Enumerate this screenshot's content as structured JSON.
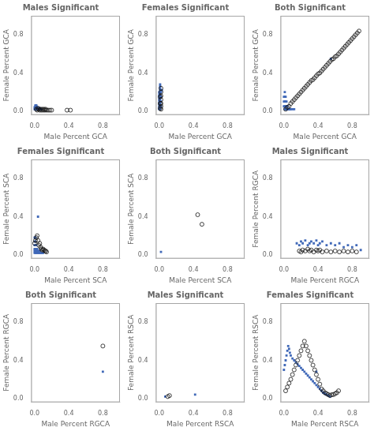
{
  "chart_data": [
    {
      "type": "scatter",
      "title": "Males Significant",
      "xlabel": "Male Percent GCA",
      "ylabel": "Female Percent GCA",
      "xlim": [
        -0.04,
        1.0
      ],
      "ylim": [
        -0.04,
        1.0
      ],
      "xticks": [
        {
          "value": 0,
          "label": "0.0"
        },
        0.4,
        0.8
      ],
      "yticks": [
        {
          "value": 0,
          "label": "0.0"
        },
        0.4,
        0.8
      ],
      "grid": false,
      "series": [
        {
          "color": "#4169b8",
          "marker": "square",
          "x": [
            0.0,
            0.0,
            0.01,
            0.01,
            0.01,
            0.01,
            0.01,
            0.02,
            0.02,
            0.02,
            0.02,
            0.02,
            0.03,
            0.03,
            0.03,
            0.04,
            0.04,
            0.05,
            0.05,
            0.06,
            0.06,
            0.07,
            0.08
          ],
          "values": [
            0.02,
            0.04,
            0.02,
            0.03,
            0.04,
            0.05,
            0.06,
            0.02,
            0.03,
            0.04,
            0.05,
            0.06,
            0.02,
            0.03,
            0.04,
            0.02,
            0.03,
            0.02,
            0.03,
            0.02,
            0.03,
            0.02,
            0.02
          ]
        },
        {
          "color": "#111111",
          "marker": "open_circle",
          "x": [
            0.02,
            0.03,
            0.04,
            0.05,
            0.06,
            0.07,
            0.08,
            0.09,
            0.1,
            0.11,
            0.12,
            0.13,
            0.14,
            0.16,
            0.18,
            0.2,
            0.38,
            0.42
          ],
          "values": [
            0.02,
            0.01,
            0.03,
            0.02,
            0.01,
            0.02,
            0.01,
            0.02,
            0.01,
            0.02,
            0.01,
            0.02,
            0.01,
            0.01,
            0.01,
            0.01,
            0.01,
            0.01
          ]
        }
      ]
    },
    {
      "type": "scatter",
      "title": "Females Significant",
      "xlabel": "Male Percent GCA",
      "ylabel": "Female Percent GCA",
      "xlim": [
        -0.04,
        1.0
      ],
      "ylim": [
        -0.04,
        1.0
      ],
      "xticks": [
        {
          "value": 0,
          "label": "0.0"
        },
        0.4,
        0.8
      ],
      "yticks": [
        {
          "value": 0,
          "label": "0.0"
        },
        0.4,
        0.8
      ],
      "grid": false,
      "series": [
        {
          "color": "#4169b8",
          "marker": "square",
          "x": [
            0.0,
            0.0,
            0.0,
            0.0,
            0.0,
            0.0,
            0.0,
            0.0,
            0.0,
            0.0,
            0.01,
            0.01,
            0.01,
            0.01,
            0.01,
            0.01,
            0.01,
            0.01,
            0.01,
            0.01,
            0.01,
            0.01,
            0.01,
            0.01,
            0.02,
            0.02,
            0.02,
            0.02,
            0.03
          ],
          "values": [
            0.02,
            0.04,
            0.06,
            0.08,
            0.1,
            0.12,
            0.14,
            0.16,
            0.18,
            0.2,
            0.02,
            0.04,
            0.06,
            0.08,
            0.1,
            0.12,
            0.14,
            0.16,
            0.18,
            0.2,
            0.22,
            0.24,
            0.26,
            0.28,
            0.05,
            0.1,
            0.15,
            0.2,
            0.22
          ]
        },
        {
          "color": "#111111",
          "marker": "open_circle",
          "x": [
            0.01,
            0.01,
            0.01,
            0.02,
            0.02,
            0.02,
            0.02,
            0.02,
            0.02,
            0.02
          ],
          "values": [
            0.03,
            0.08,
            0.15,
            0.02,
            0.05,
            0.08,
            0.12,
            0.16,
            0.2,
            0.24
          ]
        }
      ]
    },
    {
      "type": "scatter",
      "title": "Both Significant",
      "xlabel": "Male Percent GCA",
      "ylabel": "Female Percent GCA",
      "xlim": [
        -0.04,
        1.0
      ],
      "ylim": [
        -0.04,
        1.0
      ],
      "xticks": [
        {
          "value": 0,
          "label": "0.0"
        },
        0.4,
        0.8
      ],
      "yticks": [
        {
          "value": 0,
          "label": "0.0"
        },
        0.4,
        0.8
      ],
      "grid": false,
      "series": [
        {
          "color": "#4169b8",
          "marker": "square",
          "x": [
            0.0,
            0.0,
            0.0,
            0.01,
            0.01,
            0.01,
            0.01,
            0.01,
            0.02,
            0.02,
            0.02,
            0.02,
            0.03,
            0.03,
            0.03,
            0.04,
            0.04,
            0.05,
            0.06,
            0.07,
            0.08,
            0.1,
            0.12,
            0.55
          ],
          "values": [
            0.05,
            0.1,
            0.15,
            0.02,
            0.05,
            0.1,
            0.15,
            0.2,
            0.02,
            0.05,
            0.1,
            0.15,
            0.02,
            0.05,
            0.1,
            0.02,
            0.05,
            0.02,
            0.02,
            0.02,
            0.02,
            0.02,
            0.02,
            0.55
          ]
        },
        {
          "color": "#111111",
          "marker": "open_circle",
          "x": [
            0.02,
            0.04,
            0.06,
            0.08,
            0.1,
            0.12,
            0.14,
            0.16,
            0.18,
            0.2,
            0.22,
            0.24,
            0.26,
            0.28,
            0.3,
            0.32,
            0.34,
            0.36,
            0.38,
            0.4,
            0.42,
            0.44,
            0.46,
            0.48,
            0.5,
            0.52,
            0.54,
            0.56,
            0.58,
            0.6,
            0.62,
            0.64,
            0.66,
            0.68,
            0.7,
            0.72,
            0.74,
            0.76,
            0.78,
            0.8,
            0.82,
            0.84,
            0.86,
            0.88
          ],
          "values": [
            0.02,
            0.04,
            0.05,
            0.08,
            0.1,
            0.12,
            0.14,
            0.16,
            0.18,
            0.2,
            0.22,
            0.24,
            0.26,
            0.28,
            0.3,
            0.32,
            0.33,
            0.35,
            0.37,
            0.39,
            0.4,
            0.42,
            0.44,
            0.46,
            0.48,
            0.5,
            0.52,
            0.54,
            0.55,
            0.57,
            0.58,
            0.6,
            0.62,
            0.64,
            0.66,
            0.68,
            0.7,
            0.72,
            0.74,
            0.76,
            0.78,
            0.8,
            0.82,
            0.84
          ]
        }
      ]
    },
    {
      "type": "scatter",
      "title": "Females Significant",
      "xlabel": "Male Percent SCA",
      "ylabel": "Female Percent SCA",
      "xlim": [
        -0.04,
        1.0
      ],
      "ylim": [
        -0.04,
        1.0
      ],
      "xticks": [
        {
          "value": 0,
          "label": "0.0"
        },
        0.4,
        0.8
      ],
      "yticks": [
        {
          "value": 0,
          "label": "0.0"
        },
        0.4,
        0.8
      ],
      "grid": false,
      "series": [
        {
          "color": "#4169b8",
          "marker": "square",
          "x": [
            0.0,
            0.0,
            0.0,
            0.0,
            0.0,
            0.0,
            0.01,
            0.01,
            0.01,
            0.01,
            0.01,
            0.01,
            0.02,
            0.02,
            0.02,
            0.02,
            0.03,
            0.03,
            0.03,
            0.04,
            0.04,
            0.05,
            0.05,
            0.06,
            0.06,
            0.07,
            0.08,
            0.09,
            0.1,
            0.04
          ],
          "values": [
            0.02,
            0.04,
            0.06,
            0.1,
            0.14,
            0.18,
            0.02,
            0.04,
            0.06,
            0.1,
            0.14,
            0.18,
            0.02,
            0.04,
            0.06,
            0.1,
            0.02,
            0.04,
            0.06,
            0.02,
            0.04,
            0.02,
            0.04,
            0.02,
            0.04,
            0.02,
            0.02,
            0.02,
            0.02,
            0.4
          ]
        },
        {
          "color": "#111111",
          "marker": "open_circle",
          "x": [
            0.0,
            0.01,
            0.02,
            0.03,
            0.04,
            0.05,
            0.06,
            0.07,
            0.08,
            0.09,
            0.1,
            0.11,
            0.12,
            0.13,
            0.14
          ],
          "values": [
            0.12,
            0.15,
            0.18,
            0.2,
            0.15,
            0.1,
            0.12,
            0.08,
            0.06,
            0.05,
            0.06,
            0.05,
            0.04,
            0.04,
            0.03
          ]
        }
      ]
    },
    {
      "type": "scatter",
      "title": "Both Significant",
      "xlabel": "Male Percent SCA",
      "ylabel": "Female Percent SCA",
      "xlim": [
        -0.04,
        1.0
      ],
      "ylim": [
        -0.04,
        1.0
      ],
      "xticks": [
        {
          "value": 0,
          "label": "0.0"
        },
        0.4,
        0.8
      ],
      "yticks": [
        {
          "value": 0,
          "label": "0.0"
        },
        0.4,
        0.8
      ],
      "grid": false,
      "series": [
        {
          "color": "#4169b8",
          "marker": "square",
          "x": [
            0.02
          ],
          "values": [
            0.03
          ]
        },
        {
          "color": "#111111",
          "marker": "open_circle",
          "x": [
            0.45,
            0.5
          ],
          "values": [
            0.42,
            0.32
          ]
        }
      ]
    },
    {
      "type": "scatter",
      "title": "Males Significant",
      "xlabel": "Male Percent RGCA",
      "ylabel": "Female Percent RGCA",
      "xlim": [
        -0.04,
        1.0
      ],
      "ylim": [
        -0.04,
        1.0
      ],
      "xticks": [
        {
          "value": 0,
          "label": "0.0"
        },
        0.4,
        0.8
      ],
      "yticks": [
        {
          "value": 0,
          "label": "0.0"
        },
        0.4,
        0.8
      ],
      "grid": false,
      "series": [
        {
          "color": "#4169b8",
          "marker": "square",
          "x": [
            0.15,
            0.18,
            0.2,
            0.22,
            0.25,
            0.28,
            0.3,
            0.32,
            0.35,
            0.38,
            0.4,
            0.42,
            0.45,
            0.5,
            0.55,
            0.6,
            0.65,
            0.7,
            0.75,
            0.8,
            0.85,
            0.9
          ],
          "values": [
            0.12,
            0.1,
            0.14,
            0.12,
            0.15,
            0.1,
            0.12,
            0.14,
            0.12,
            0.15,
            0.1,
            0.12,
            0.14,
            0.1,
            0.12,
            0.1,
            0.12,
            0.08,
            0.1,
            0.08,
            0.1,
            0.05
          ]
        },
        {
          "color": "#111111",
          "marker": "open_circle",
          "x": [
            0.18,
            0.2,
            0.22,
            0.25,
            0.28,
            0.3,
            0.32,
            0.35,
            0.38,
            0.4,
            0.42,
            0.45,
            0.5,
            0.55,
            0.6,
            0.65,
            0.7,
            0.75,
            0.8,
            0.85
          ],
          "values": [
            0.04,
            0.03,
            0.05,
            0.04,
            0.06,
            0.04,
            0.05,
            0.03,
            0.05,
            0.04,
            0.05,
            0.03,
            0.04,
            0.03,
            0.04,
            0.03,
            0.04,
            0.03,
            0.04,
            0.03
          ]
        }
      ]
    },
    {
      "type": "scatter",
      "title": "Both Significant",
      "xlabel": "Male Percent RGCA",
      "ylabel": "Female Percent RGCA",
      "xlim": [
        -0.04,
        1.0
      ],
      "ylim": [
        -0.04,
        1.0
      ],
      "xticks": [
        {
          "value": 0,
          "label": "0.0"
        },
        0.4,
        0.8
      ],
      "yticks": [
        {
          "value": 0,
          "label": "0.0"
        },
        0.4,
        0.8
      ],
      "grid": false,
      "series": [
        {
          "color": "#4169b8",
          "marker": "square",
          "x": [
            0.8
          ],
          "values": [
            0.28
          ]
        },
        {
          "color": "#111111",
          "marker": "open_circle",
          "x": [
            0.8
          ],
          "values": [
            0.55
          ]
        }
      ]
    },
    {
      "type": "scatter",
      "title": "Males Significant",
      "xlabel": "Male Percent RSCA",
      "ylabel": "Female Percent RSCA",
      "xlim": [
        -0.04,
        1.0
      ],
      "ylim": [
        -0.04,
        1.0
      ],
      "xticks": [
        {
          "value": 0,
          "label": "0.0"
        },
        0.4,
        0.8
      ],
      "yticks": [
        {
          "value": 0,
          "label": "0.0"
        },
        0.4,
        0.8
      ],
      "grid": false,
      "series": [
        {
          "color": "#4169b8",
          "marker": "square",
          "x": [
            0.07,
            0.42
          ],
          "values": [
            0.02,
            0.04
          ]
        },
        {
          "color": "#111111",
          "marker": "open_circle",
          "x": [
            0.1,
            0.12
          ],
          "values": [
            0.02,
            0.03
          ]
        }
      ]
    },
    {
      "type": "scatter",
      "title": "Females Significant",
      "xlabel": "Male Percent RSCA",
      "ylabel": "Female Percent RSCA",
      "xlim": [
        -0.04,
        1.0
      ],
      "ylim": [
        -0.04,
        1.0
      ],
      "xticks": [
        {
          "value": 0,
          "label": "0.0"
        },
        0.4,
        0.8
      ],
      "yticks": [
        {
          "value": 0,
          "label": "0.0"
        },
        0.4,
        0.8
      ],
      "grid": false,
      "series": [
        {
          "color": "#4169b8",
          "marker": "square",
          "x": [
            0.0,
            0.01,
            0.02,
            0.03,
            0.04,
            0.05,
            0.06,
            0.07,
            0.08,
            0.1,
            0.12,
            0.14,
            0.16,
            0.18,
            0.2,
            0.22,
            0.24,
            0.26,
            0.28,
            0.3,
            0.32,
            0.34,
            0.36,
            0.38,
            0.4,
            0.42,
            0.44,
            0.46,
            0.48,
            0.5,
            0.52,
            0.54,
            0.38
          ],
          "values": [
            0.3,
            0.35,
            0.4,
            0.45,
            0.5,
            0.55,
            0.52,
            0.48,
            0.45,
            0.42,
            0.4,
            0.38,
            0.36,
            0.34,
            0.32,
            0.3,
            0.28,
            0.26,
            0.24,
            0.22,
            0.2,
            0.18,
            0.16,
            0.14,
            0.12,
            0.1,
            0.08,
            0.06,
            0.05,
            0.04,
            0.03,
            0.02,
            0.28
          ]
        },
        {
          "color": "#111111",
          "marker": "open_circle",
          "x": [
            0.02,
            0.04,
            0.06,
            0.08,
            0.1,
            0.12,
            0.14,
            0.16,
            0.18,
            0.2,
            0.22,
            0.24,
            0.26,
            0.28,
            0.3,
            0.32,
            0.34,
            0.36,
            0.38,
            0.4,
            0.42,
            0.44,
            0.46,
            0.48,
            0.5,
            0.52,
            0.54,
            0.56,
            0.58,
            0.6,
            0.62,
            0.64
          ],
          "values": [
            0.08,
            0.12,
            0.16,
            0.2,
            0.25,
            0.3,
            0.35,
            0.4,
            0.45,
            0.5,
            0.55,
            0.6,
            0.55,
            0.5,
            0.45,
            0.4,
            0.35,
            0.3,
            0.25,
            0.2,
            0.15,
            0.1,
            0.08,
            0.06,
            0.05,
            0.04,
            0.03,
            0.04,
            0.04,
            0.05,
            0.06,
            0.08
          ]
        }
      ]
    }
  ]
}
